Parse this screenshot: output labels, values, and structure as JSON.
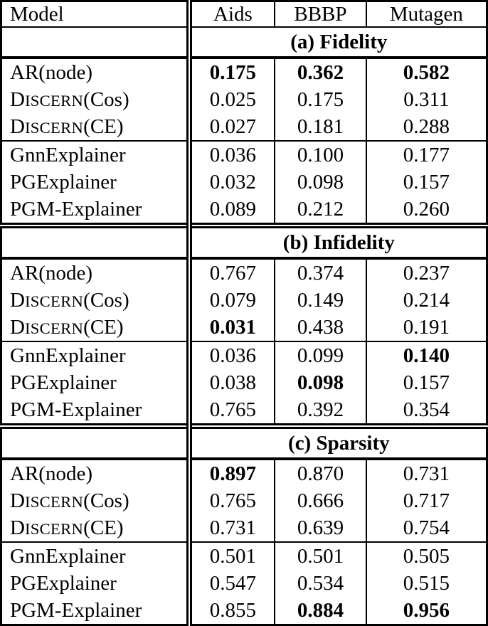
{
  "page": {
    "background_color": "#ffffff",
    "text_color": "#000000",
    "border_color": "#000000"
  },
  "table": {
    "header": {
      "model": "Model",
      "datasets": [
        "Aids",
        "BBBP",
        "Mutagen"
      ]
    },
    "sections": [
      {
        "id": "a",
        "label": "(a) Fidelity",
        "groups": [
          [
            {
              "model": "AR(node)",
              "smallcaps": false,
              "cells": [
                {
                  "v": "0.175",
                  "bold": true
                },
                {
                  "v": "0.362",
                  "bold": true
                },
                {
                  "v": "0.582",
                  "bold": true
                }
              ]
            },
            {
              "model": "DISCERN(Cos)",
              "smallcaps": true,
              "cells": [
                {
                  "v": "0.025",
                  "bold": false
                },
                {
                  "v": "0.175",
                  "bold": false
                },
                {
                  "v": "0.311",
                  "bold": false
                }
              ]
            },
            {
              "model": "DISCERN(CE)",
              "smallcaps": true,
              "cells": [
                {
                  "v": "0.027",
                  "bold": false
                },
                {
                  "v": "0.181",
                  "bold": false
                },
                {
                  "v": "0.288",
                  "bold": false
                }
              ]
            }
          ],
          [
            {
              "model": "GnnExplainer",
              "smallcaps": false,
              "cells": [
                {
                  "v": "0.036",
                  "bold": false
                },
                {
                  "v": "0.100",
                  "bold": false
                },
                {
                  "v": "0.177",
                  "bold": false
                }
              ]
            },
            {
              "model": "PGExplainer",
              "smallcaps": false,
              "cells": [
                {
                  "v": "0.032",
                  "bold": false
                },
                {
                  "v": "0.098",
                  "bold": false
                },
                {
                  "v": "0.157",
                  "bold": false
                }
              ]
            },
            {
              "model": "PGM-Explainer",
              "smallcaps": false,
              "cells": [
                {
                  "v": "0.089",
                  "bold": false
                },
                {
                  "v": "0.212",
                  "bold": false
                },
                {
                  "v": "0.260",
                  "bold": false
                }
              ]
            }
          ]
        ]
      },
      {
        "id": "b",
        "label": "(b) Infidelity",
        "groups": [
          [
            {
              "model": "AR(node)",
              "smallcaps": false,
              "cells": [
                {
                  "v": "0.767",
                  "bold": false
                },
                {
                  "v": "0.374",
                  "bold": false
                },
                {
                  "v": "0.237",
                  "bold": false
                }
              ]
            },
            {
              "model": "DISCERN(Cos)",
              "smallcaps": true,
              "cells": [
                {
                  "v": "0.079",
                  "bold": false
                },
                {
                  "v": "0.149",
                  "bold": false
                },
                {
                  "v": "0.214",
                  "bold": false
                }
              ]
            },
            {
              "model": "DISCERN(CE)",
              "smallcaps": true,
              "cells": [
                {
                  "v": "0.031",
                  "bold": true
                },
                {
                  "v": "0.438",
                  "bold": false
                },
                {
                  "v": "0.191",
                  "bold": false
                }
              ]
            }
          ],
          [
            {
              "model": "GnnExplainer",
              "smallcaps": false,
              "cells": [
                {
                  "v": "0.036",
                  "bold": false
                },
                {
                  "v": "0.099",
                  "bold": false
                },
                {
                  "v": "0.140",
                  "bold": true
                }
              ]
            },
            {
              "model": "PGExplainer",
              "smallcaps": false,
              "cells": [
                {
                  "v": "0.038",
                  "bold": false
                },
                {
                  "v": "0.098",
                  "bold": true
                },
                {
                  "v": "0.157",
                  "bold": false
                }
              ]
            },
            {
              "model": "PGM-Explainer",
              "smallcaps": false,
              "cells": [
                {
                  "v": "0.765",
                  "bold": false
                },
                {
                  "v": "0.392",
                  "bold": false
                },
                {
                  "v": "0.354",
                  "bold": false
                }
              ]
            }
          ]
        ]
      },
      {
        "id": "c",
        "label": "(c) Sparsity",
        "groups": [
          [
            {
              "model": "AR(node)",
              "smallcaps": false,
              "cells": [
                {
                  "v": "0.897",
                  "bold": true
                },
                {
                  "v": "0.870",
                  "bold": false
                },
                {
                  "v": "0.731",
                  "bold": false
                }
              ]
            },
            {
              "model": "DISCERN(Cos)",
              "smallcaps": true,
              "cells": [
                {
                  "v": "0.765",
                  "bold": false
                },
                {
                  "v": "0.666",
                  "bold": false
                },
                {
                  "v": "0.717",
                  "bold": false
                }
              ]
            },
            {
              "model": "DISCERN(CE)",
              "smallcaps": true,
              "cells": [
                {
                  "v": "0.731",
                  "bold": false
                },
                {
                  "v": "0.639",
                  "bold": false
                },
                {
                  "v": "0.754",
                  "bold": false
                }
              ]
            }
          ],
          [
            {
              "model": "GnnExplainer",
              "smallcaps": false,
              "cells": [
                {
                  "v": "0.501",
                  "bold": false
                },
                {
                  "v": "0.501",
                  "bold": false
                },
                {
                  "v": "0.505",
                  "bold": false
                }
              ]
            },
            {
              "model": "PGExplainer",
              "smallcaps": false,
              "cells": [
                {
                  "v": "0.547",
                  "bold": false
                },
                {
                  "v": "0.534",
                  "bold": false
                },
                {
                  "v": "0.515",
                  "bold": false
                }
              ]
            },
            {
              "model": "PGM-Explainer",
              "smallcaps": false,
              "cells": [
                {
                  "v": "0.855",
                  "bold": false
                },
                {
                  "v": "0.884",
                  "bold": true
                },
                {
                  "v": "0.956",
                  "bold": true
                }
              ]
            }
          ]
        ]
      }
    ]
  }
}
